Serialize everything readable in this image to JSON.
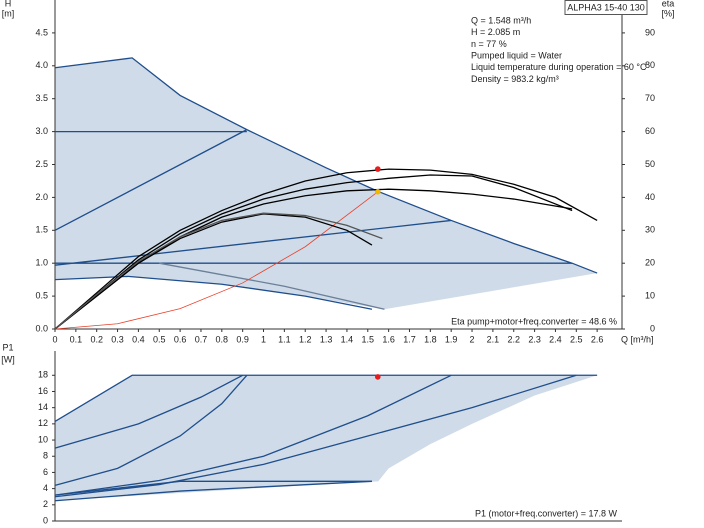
{
  "chart_data": [
    {
      "type": "line",
      "ylabel": [
        "H",
        "[m]"
      ],
      "y2label": [
        "eta",
        "[%]"
      ],
      "xlabel": "Q [m³/h]",
      "model": "ALPHA3 15-40 130",
      "info": [
        "Q = 1.548 m³/h",
        "H = 2.085 m",
        "n = 77 %",
        "Pumped liquid = Water",
        "Liquid temperature during operation = 60 °C",
        "Density = 983.2 kg/m³"
      ],
      "note": "Eta pump+motor+freq.converter = 48.6 %",
      "xlim": [
        0,
        2.7
      ],
      "xticks": [
        0,
        0.1,
        0.2,
        0.3,
        0.4,
        0.5,
        0.6,
        0.7,
        0.8,
        0.9,
        1,
        1.1,
        1.2,
        1.3,
        1.4,
        1.5,
        1.6,
        1.7,
        1.8,
        1.9,
        2,
        2.1,
        2.2,
        2.3,
        2.4,
        2.5,
        2.6
      ],
      "ylim": [
        0,
        5
      ],
      "yticks": [
        {
          "value": 0,
          "label": "0.0"
        },
        0.5,
        {
          "value": 1,
          "label": "1.0"
        },
        1.5,
        {
          "value": 2,
          "label": "2.0"
        },
        2.5,
        {
          "value": 3,
          "label": "3.0"
        },
        3.5,
        {
          "value": 4,
          "label": "4.0"
        },
        4.5
      ],
      "y2lim": [
        0,
        100
      ],
      "y2ticks": [
        0,
        10,
        20,
        30,
        40,
        50,
        60,
        70,
        80,
        90
      ],
      "areas": [
        {
          "color": "#cfdbe8",
          "x": [
            0,
            0.37,
            0.6,
            0.92,
            1.3,
            1.55,
            1.9,
            2.2,
            2.48,
            2.6,
            1.58,
            1.2,
            0.8,
            0.35,
            0
          ],
          "values": [
            3.97,
            4.12,
            3.55,
            3.03,
            2.45,
            2.09,
            1.65,
            1.3,
            1.0,
            0.85,
            0.3,
            0.5,
            0.68,
            0.8,
            0.75
          ]
        }
      ],
      "series": [
        {
          "color": "#1f4e8c",
          "x": [
            0,
            0.37,
            0.6,
            0.92,
            1.3,
            1.55,
            1.9,
            2.2,
            2.48,
            2.6
          ],
          "values": [
            3.97,
            4.12,
            3.55,
            3.03,
            2.45,
            2.09,
            1.65,
            1.3,
            1.0,
            0.85
          ]
        },
        {
          "color": "#1f4e8c",
          "x": [
            0,
            0.92
          ],
          "values": [
            3.0,
            3.0
          ]
        },
        {
          "color": "#1f4e8c",
          "x": [
            0,
            0.92
          ],
          "values": [
            1.5,
            3.03
          ]
        },
        {
          "color": "#1f4e8c",
          "x": [
            0,
            1.9
          ],
          "values": [
            0.97,
            1.65
          ]
        },
        {
          "color": "#1f4e8c",
          "x": [
            0,
            2.48
          ],
          "values": [
            1.0,
            1.0
          ]
        },
        {
          "color": "#1f4e8c",
          "x": [
            0,
            0.35,
            0.8,
            1.2,
            1.52
          ],
          "values": [
            0.75,
            0.8,
            0.68,
            0.5,
            0.3
          ]
        },
        {
          "color": "#6b7f99",
          "x": [
            0.5,
            1.1,
            1.58
          ],
          "values": [
            1.0,
            0.65,
            0.3
          ]
        },
        {
          "color": "#e8412c",
          "x": [
            0,
            0.3,
            0.6,
            0.9,
            1.2,
            1.548
          ],
          "values": [
            0,
            0.08,
            0.31,
            0.7,
            1.25,
            2.085
          ]
        },
        {
          "color": "#000000",
          "axis": "y2",
          "x": [
            0,
            0.2,
            0.4,
            0.6,
            0.8,
            1.0,
            1.2,
            1.4,
            1.6,
            1.8,
            2.0,
            2.2,
            2.4,
            2.6
          ],
          "values": [
            0,
            11,
            22,
            30,
            36,
            41,
            45,
            47.5,
            48.6,
            48.3,
            47,
            44,
            40,
            33
          ]
        },
        {
          "color": "#000000",
          "axis": "y2",
          "x": [
            0,
            0.2,
            0.4,
            0.6,
            0.8,
            1.0,
            1.2,
            1.4,
            1.6,
            1.8,
            2.0,
            2.2,
            2.48
          ],
          "values": [
            0,
            10.5,
            21,
            29,
            35,
            39.5,
            42.5,
            44.5,
            45.8,
            46.8,
            46.5,
            43,
            36
          ]
        },
        {
          "color": "#000000",
          "axis": "y2",
          "x": [
            0,
            0.2,
            0.4,
            0.6,
            0.8,
            1.0,
            1.2,
            1.4,
            1.6,
            1.8,
            2.0,
            2.2,
            2.48
          ],
          "values": [
            0,
            10,
            20,
            28,
            34,
            38,
            40.5,
            42,
            42.5,
            42,
            41,
            39.5,
            36.5
          ]
        },
        {
          "color": "#000000",
          "axis": "y2",
          "x": [
            0,
            0.2,
            0.4,
            0.6,
            0.8,
            1.0,
            1.2,
            1.4,
            1.52
          ],
          "values": [
            0,
            10,
            20,
            27.5,
            32.5,
            35,
            34,
            30,
            25.5
          ]
        },
        {
          "color": "#555555",
          "axis": "y2",
          "x": [
            0,
            0.2,
            0.4,
            0.6,
            0.8,
            1.0,
            1.2,
            1.4,
            1.57
          ],
          "values": [
            0,
            10.5,
            20.5,
            28,
            33,
            35.2,
            34.5,
            31.5,
            27.5
          ]
        }
      ],
      "points": [
        {
          "color": "#e81c1c",
          "axis": "y2",
          "x": 1.548,
          "y": 48.6
        },
        {
          "color": "#f5b800",
          "x": 1.548,
          "y": 2.085
        }
      ]
    },
    {
      "type": "line",
      "ylabel": [
        "P1",
        "[W]"
      ],
      "note": "P1 (motor+freq.converter) = 17.8 W",
      "xlim": [
        0,
        2.7
      ],
      "ylim": [
        0,
        21
      ],
      "yticks": [
        0,
        2,
        4,
        6,
        8,
        10,
        12,
        14,
        16,
        18
      ],
      "areas": [
        {
          "color": "#cfdbe8",
          "x": [
            0,
            0.37,
            2.6,
            2.3,
            2.0,
            1.8,
            1.6,
            1.55,
            1.0,
            0.5,
            0
          ],
          "values": [
            12.3,
            18,
            18,
            15.5,
            12,
            9.5,
            6.5,
            4.9,
            4.1,
            3.3,
            2.5
          ]
        }
      ],
      "series": [
        {
          "color": "#1f4e8c",
          "x": [
            0,
            0.37,
            2.6
          ],
          "values": [
            12.3,
            18,
            18
          ]
        },
        {
          "color": "#1f4e8c",
          "x": [
            0,
            0.4,
            0.7,
            0.9
          ],
          "values": [
            9,
            12,
            15.3,
            18
          ]
        },
        {
          "color": "#1f4e8c",
          "x": [
            0,
            0.3,
            0.6,
            0.8,
            0.92
          ],
          "values": [
            4.4,
            6.5,
            10.5,
            14.5,
            18
          ]
        },
        {
          "color": "#1f4e8c",
          "x": [
            0,
            0.5,
            1.0,
            1.5,
            1.9
          ],
          "values": [
            3.2,
            5,
            8,
            13,
            18
          ]
        },
        {
          "color": "#1f4e8c",
          "x": [
            0,
            0.5,
            1.0,
            1.5,
            2.0,
            2.5
          ],
          "values": [
            3,
            4.5,
            7,
            10.5,
            14,
            18
          ]
        },
        {
          "color": "#1f4e8c",
          "x": [
            0,
            0.6,
            1.52
          ],
          "values": [
            2.5,
            3.7,
            4.9
          ]
        },
        {
          "color": "#1f4e8c",
          "x": [
            0,
            0.6,
            1.52
          ],
          "values": [
            3.2,
            4.9,
            4.9
          ]
        }
      ],
      "points": [
        {
          "color": "#e81c1c",
          "x": 1.548,
          "y": 17.8
        }
      ]
    }
  ]
}
